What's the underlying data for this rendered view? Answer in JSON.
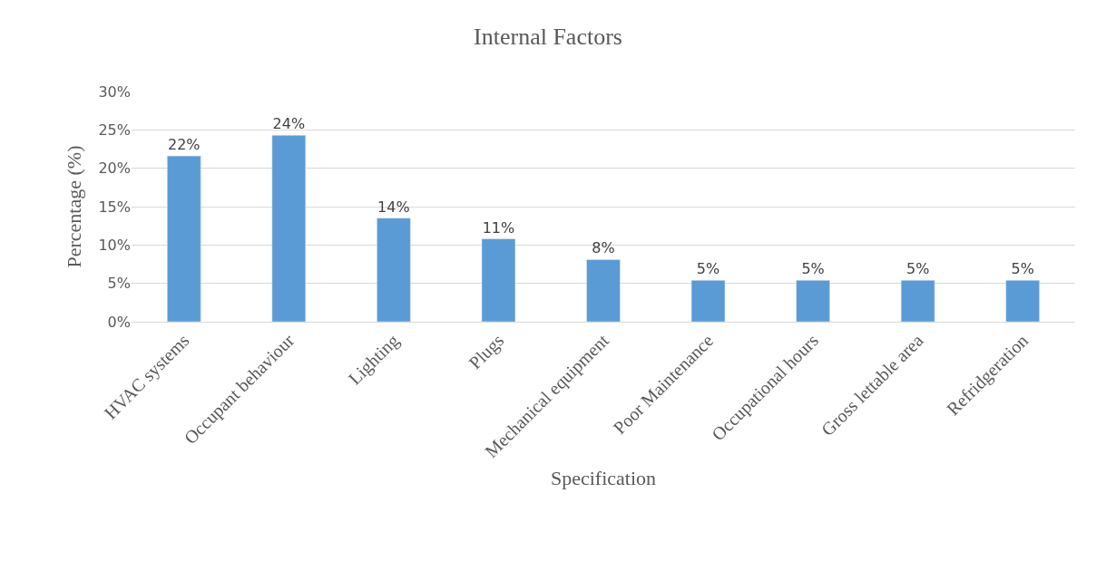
{
  "chart_data": {
    "type": "bar",
    "title": "Internal Factors",
    "xlabel": "Specification",
    "ylabel": "Percentage (%)",
    "categories": [
      "HVAC systems",
      "Occupant behaviour",
      "Lighting",
      "Plugs",
      "Mechanical equipment",
      "Poor Maintenance",
      "Occupational hours",
      "Gross lettable area",
      "Refridgeration"
    ],
    "values": [
      21.6,
      24.3,
      13.5,
      10.8,
      8.1,
      5.4,
      5.4,
      5.4,
      5.4
    ],
    "value_labels": [
      "22%",
      "24%",
      "14%",
      "11%",
      "8%",
      "5%",
      "5%",
      "5%",
      "5%"
    ],
    "color": "#5b9bd5",
    "ylim": [
      0,
      30
    ],
    "yticks": [
      {
        "value": 0,
        "label": "0%"
      },
      {
        "value": 5,
        "label": "5%"
      },
      {
        "value": 10,
        "label": "10%"
      },
      {
        "value": 15,
        "label": "15%"
      },
      {
        "value": 20,
        "label": "20%"
      },
      {
        "value": 25,
        "label": "25%"
      },
      {
        "value": 30,
        "label": "30%"
      }
    ],
    "grid": "y",
    "legend": false
  }
}
